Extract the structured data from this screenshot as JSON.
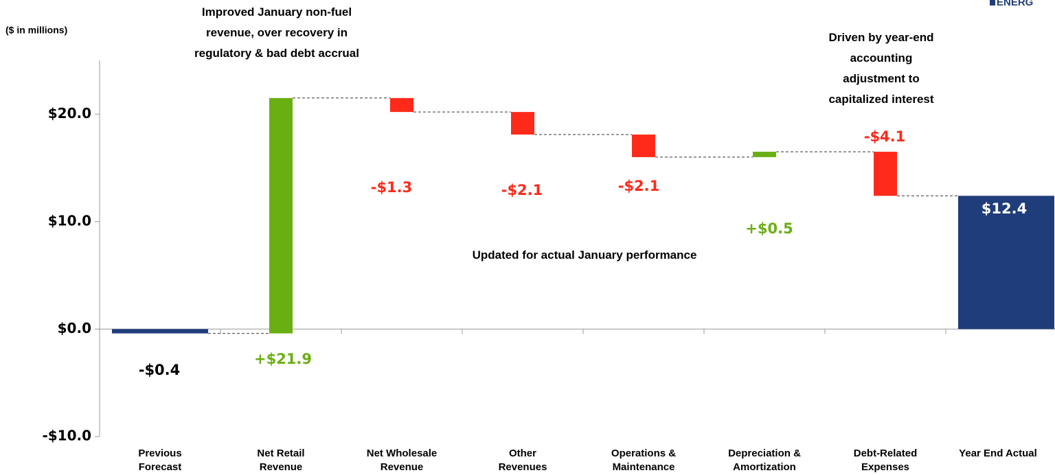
{
  "chart_data": {
    "type": "waterfall",
    "y_label": "($ in millions)",
    "logo": "ENERG",
    "categories": [
      "Previous\nForecast",
      "Net Retail\nRevenue",
      "Net Wholesale\nRevenue",
      "Other\nRevenues",
      "Operations &\nMaintenance",
      "Depreciation &\nAmortization",
      "Debt-Related\nExpenses",
      "Year End Actual"
    ],
    "values": [
      -0.4,
      21.9,
      -1.3,
      -2.1,
      -2.1,
      0.5,
      -4.1,
      12.4
    ],
    "value_labels": [
      "-$0.4",
      "+$21.9",
      "-$1.3",
      "-$2.1",
      "-$2.1",
      "+$0.5",
      "-$4.1",
      "$12.4"
    ],
    "measure": [
      "absolute",
      "relative",
      "relative",
      "relative",
      "relative",
      "relative",
      "relative",
      "total"
    ],
    "colors": {
      "total": "#1f3d7a",
      "increase": "#6aaf12",
      "decrease": "#ff2a1a"
    },
    "ylim": [
      -10,
      25
    ],
    "yticks": [
      {
        "value": -10,
        "label": "-$10.0"
      },
      {
        "value": 0,
        "label": "$0.0"
      },
      {
        "value": 10,
        "label": "$10.0"
      },
      {
        "value": 20,
        "label": "$20.0"
      }
    ],
    "annotations": [
      "Improved January non-fuel\nrevenue, over recovery in\nregulatory & bad debt accrual",
      "Driven by year-end\naccounting\nadjustment to\ncapitalized interest",
      "Updated for actual January performance"
    ]
  }
}
